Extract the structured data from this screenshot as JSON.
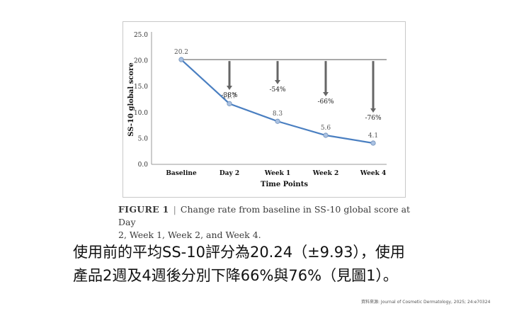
{
  "chart_data": {
    "type": "line",
    "title": "",
    "xlabel": "Time Points",
    "ylabel": "SS-10 global score",
    "ylim": [
      0,
      25
    ],
    "yticks": [
      "0.0",
      "5.0",
      "10.0",
      "15.0",
      "20.0",
      "25.0"
    ],
    "categories": [
      "Baseline",
      "Day 2",
      "Week 1",
      "Week 2",
      "Week 4"
    ],
    "values": [
      20.2,
      11.7,
      8.3,
      5.6,
      4.1
    ],
    "value_labels": [
      "20.2",
      "11.7",
      "8.3",
      "5.6",
      "4.1"
    ],
    "baseline_value": 20.2,
    "change_labels": [
      "",
      "-38%",
      "-54%",
      "-66%",
      "-76%"
    ],
    "line_color": "#4a7fc1",
    "marker_fill": "#a9c1e2",
    "arrow_color": "#666666",
    "grid": false
  },
  "caption": {
    "label": "FIGURE 1",
    "separator": "|",
    "line1": "Change rate from baseline in SS-10 global score at Day",
    "line2": "2, Week 1, Week 2, and Week 4."
  },
  "body": {
    "line1": "使用前的平均SS-10評分為20.24（±9.93），使用",
    "line2": "產品2週及4週後分別下降66%與76%（見圖1）。"
  },
  "source": "資料來源: Journal of Cosmetic Dermatology, 2025; 24:e70324"
}
